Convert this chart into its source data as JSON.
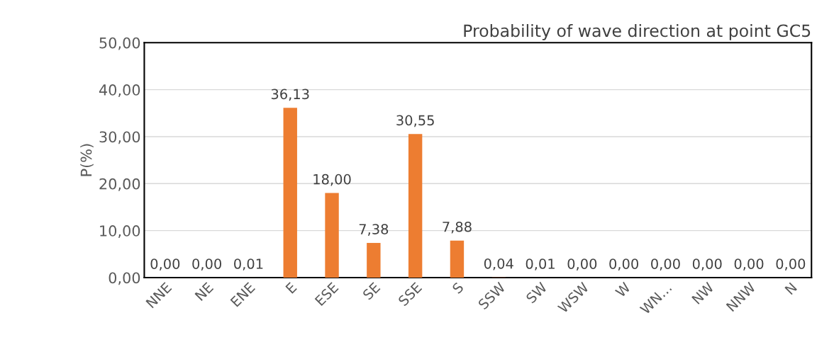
{
  "chart_data": {
    "type": "bar",
    "title": "Probability of wave direction at point GC5",
    "ylabel": "P(%)",
    "categories": [
      "NNE",
      "NE",
      "ENE",
      "E",
      "ESE",
      "SE",
      "SSE",
      "S",
      "SSW",
      "SW",
      "WSW",
      "W",
      "WN…",
      "NW",
      "NNW",
      "N"
    ],
    "values": [
      0.0,
      0.0,
      0.01,
      36.13,
      18.0,
      7.38,
      30.55,
      7.88,
      0.04,
      0.01,
      0.0,
      0.0,
      0.0,
      0.0,
      0.0,
      0.0
    ],
    "value_labels": [
      "0,00",
      "0,00",
      "0,01",
      "36,13",
      "18,00",
      "7,38",
      "30,55",
      "7,88",
      "0,04",
      "0,01",
      "0,00",
      "0,00",
      "0,00",
      "0,00",
      "0,00",
      "0,00"
    ],
    "color": "#ed7d31",
    "ylim": [
      0,
      50
    ],
    "yticks": [
      {
        "value": 0,
        "label": "0,00"
      },
      {
        "value": 10,
        "label": "10,00"
      },
      {
        "value": 20,
        "label": "20,00"
      },
      {
        "value": 30,
        "label": "30,00"
      },
      {
        "value": 40,
        "label": "40,00"
      },
      {
        "value": 50,
        "label": "50,00"
      }
    ],
    "grid": "y",
    "legend": false
  }
}
